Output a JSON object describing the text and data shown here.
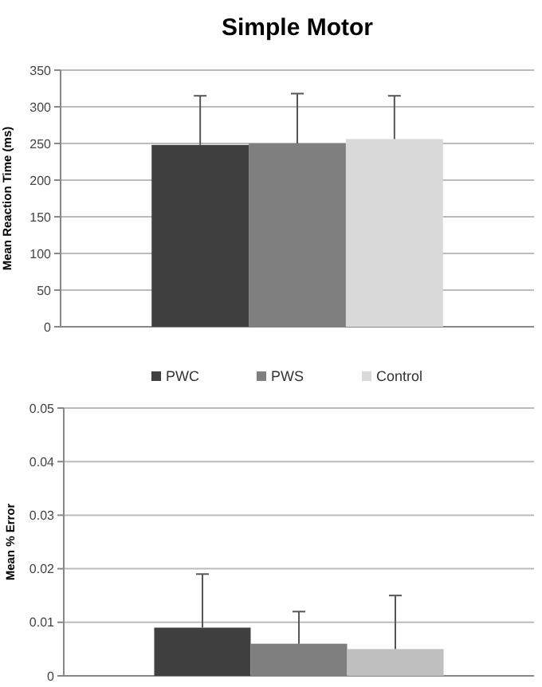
{
  "chart_data": [
    {
      "type": "bar",
      "title": "Simple Motor",
      "ylabel": "Mean Reaction Time (ms)",
      "categories": [
        null
      ],
      "ylim": [
        0,
        350
      ],
      "yticks": [
        0,
        50,
        100,
        150,
        200,
        250,
        300,
        350
      ],
      "grid": "y",
      "legend": "bottom",
      "series": [
        {
          "name": "PWC",
          "color": "#404040",
          "values": [
            248
          ],
          "errors": [
            [
              248,
              315
            ]
          ]
        },
        {
          "name": "PWS",
          "color": "#7f7f7f",
          "values": [
            250
          ],
          "errors": [
            [
              250,
              318
            ]
          ]
        },
        {
          "name": "Control",
          "color": "#d9d9d9",
          "values": [
            256
          ],
          "errors": [
            [
              256,
              315
            ]
          ]
        }
      ]
    },
    {
      "type": "bar",
      "ylabel": "Mean % Error",
      "categories": [
        null
      ],
      "ylim": [
        0,
        0.05
      ],
      "yticks": [
        {
          "value": 0,
          "label": "0"
        },
        0.01,
        0.02,
        0.03,
        0.04,
        0.05
      ],
      "grid": "y",
      "series": [
        {
          "color": "#404040",
          "values": [
            0.009
          ],
          "errors": [
            [
              0.009,
              0.019
            ]
          ]
        },
        {
          "color": "#7f7f7f",
          "values": [
            0.006
          ],
          "errors": [
            [
              0.006,
              0.012
            ]
          ]
        },
        {
          "color": "#bfbfbf",
          "values": [
            0.005
          ],
          "errors": [
            [
              0.005,
              0.015
            ]
          ]
        }
      ]
    }
  ]
}
